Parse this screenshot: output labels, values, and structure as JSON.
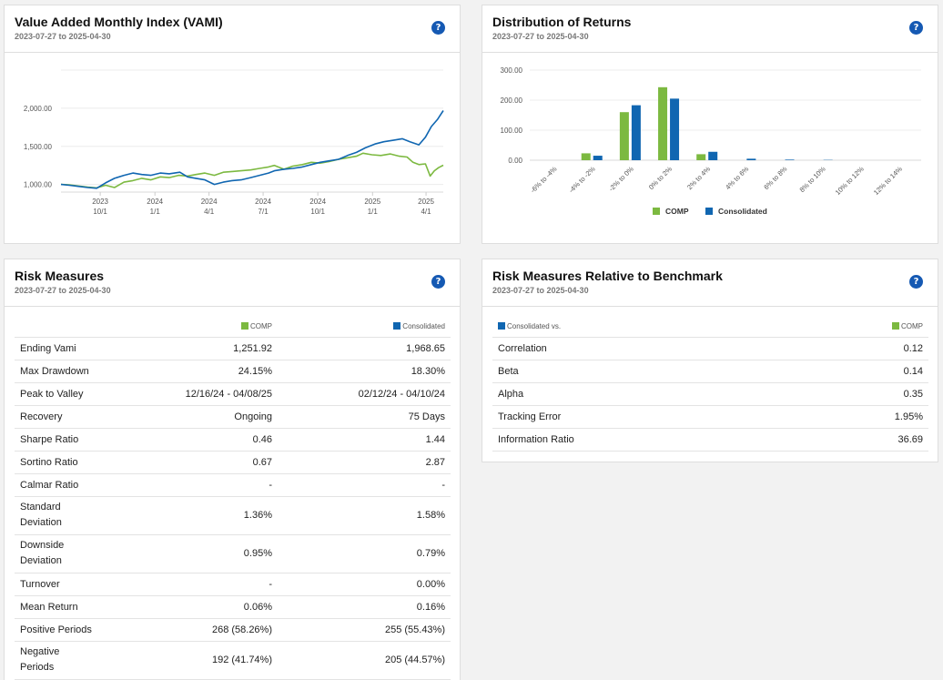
{
  "colors": {
    "comp": "#7cb940",
    "consolidated": "#1066b1",
    "help": "#1559b3"
  },
  "vami": {
    "title": "Value Added Monthly Index (VAMI)",
    "date_range": "2023-07-27 to 2025-04-30",
    "help_icon": "?",
    "chart_data": {
      "type": "line",
      "title": "",
      "y_ticks": [
        "2,000.00",
        "1,500.00",
        "1,000.00"
      ],
      "y_tick_values": [
        2000,
        1500,
        1000
      ],
      "ylim": [
        900,
        2500
      ],
      "x_ticks": [
        {
          "year": "2023",
          "month": "10/1",
          "date": "2023-10-01"
        },
        {
          "year": "2024",
          "month": "1/1",
          "date": "2024-01-01"
        },
        {
          "year": "2024",
          "month": "4/1",
          "date": "2024-04-01"
        },
        {
          "year": "2024",
          "month": "7/1",
          "date": "2024-07-01"
        },
        {
          "year": "2024",
          "month": "10/1",
          "date": "2024-10-01"
        },
        {
          "year": "2025",
          "month": "1/1",
          "date": "2025-01-01"
        },
        {
          "year": "2025",
          "month": "4/1",
          "date": "2025-04-01"
        }
      ],
      "xlim": [
        "2023-07-27",
        "2025-04-30"
      ],
      "series": [
        {
          "name": "COMP",
          "color": "#7cb940",
          "x": [
            "2023-07-27",
            "2023-08-10",
            "2023-08-25",
            "2023-09-10",
            "2023-09-25",
            "2023-10-10",
            "2023-10-25",
            "2023-11-10",
            "2023-11-25",
            "2023-12-10",
            "2023-12-25",
            "2024-01-10",
            "2024-01-25",
            "2024-02-10",
            "2024-02-25",
            "2024-03-10",
            "2024-03-25",
            "2024-04-10",
            "2024-04-25",
            "2024-05-10",
            "2024-05-25",
            "2024-06-10",
            "2024-06-25",
            "2024-07-10",
            "2024-07-20",
            "2024-08-05",
            "2024-08-20",
            "2024-09-05",
            "2024-09-20",
            "2024-10-05",
            "2024-10-20",
            "2024-11-05",
            "2024-11-20",
            "2024-12-05",
            "2024-12-16",
            "2024-12-31",
            "2025-01-15",
            "2025-01-31",
            "2025-02-15",
            "2025-02-28",
            "2025-03-10",
            "2025-03-20",
            "2025-03-31",
            "2025-04-08",
            "2025-04-15",
            "2025-04-22",
            "2025-04-30"
          ],
          "values": [
            1000,
            995,
            980,
            965,
            955,
            990,
            960,
            1030,
            1050,
            1080,
            1060,
            1100,
            1090,
            1120,
            1110,
            1130,
            1150,
            1120,
            1160,
            1170,
            1180,
            1190,
            1210,
            1230,
            1250,
            1200,
            1240,
            1260,
            1290,
            1280,
            1300,
            1330,
            1350,
            1370,
            1410,
            1390,
            1380,
            1400,
            1370,
            1360,
            1290,
            1260,
            1270,
            1110,
            1180,
            1220,
            1252
          ]
        },
        {
          "name": "Consolidated",
          "color": "#1066b1",
          "x": [
            "2023-07-27",
            "2023-08-10",
            "2023-08-25",
            "2023-09-10",
            "2023-09-25",
            "2023-10-10",
            "2023-10-25",
            "2023-11-10",
            "2023-11-25",
            "2023-12-10",
            "2023-12-25",
            "2024-01-10",
            "2024-01-25",
            "2024-02-12",
            "2024-02-25",
            "2024-03-10",
            "2024-03-25",
            "2024-04-10",
            "2024-04-25",
            "2024-05-10",
            "2024-05-25",
            "2024-06-10",
            "2024-06-25",
            "2024-07-10",
            "2024-07-20",
            "2024-08-05",
            "2024-08-20",
            "2024-09-05",
            "2024-09-20",
            "2024-10-05",
            "2024-10-20",
            "2024-11-05",
            "2024-11-20",
            "2024-12-05",
            "2024-12-20",
            "2025-01-05",
            "2025-01-20",
            "2025-02-05",
            "2025-02-20",
            "2025-03-05",
            "2025-03-20",
            "2025-03-31",
            "2025-04-10",
            "2025-04-20",
            "2025-04-30"
          ],
          "values": [
            1000,
            990,
            975,
            960,
            950,
            1020,
            1080,
            1120,
            1150,
            1130,
            1120,
            1150,
            1140,
            1160,
            1100,
            1080,
            1060,
            1000,
            1030,
            1050,
            1060,
            1090,
            1120,
            1150,
            1180,
            1200,
            1210,
            1230,
            1260,
            1290,
            1310,
            1330,
            1380,
            1420,
            1480,
            1530,
            1560,
            1580,
            1600,
            1560,
            1520,
            1620,
            1760,
            1850,
            1969
          ]
        }
      ]
    }
  },
  "distribution": {
    "title": "Distribution of Returns",
    "date_range": "2023-07-27 to 2025-04-30",
    "help_icon": "?",
    "chart_data": {
      "type": "bar",
      "title": "",
      "categories": [
        "-6% to -4%",
        "-4% to -2%",
        "-2% to 0%",
        "0% to 2%",
        "2% to 4%",
        "4% to 6%",
        "6% to 8%",
        "8% to 10%",
        "10% to 12%",
        "12% to 14%"
      ],
      "y_ticks": [
        "300.00",
        "200.00",
        "100.00",
        "0.00"
      ],
      "y_tick_values": [
        300,
        200,
        100,
        0
      ],
      "ylim": [
        0,
        300
      ],
      "legend_position": "bottom",
      "series": [
        {
          "name": "COMP",
          "color": "#7cb940",
          "values": [
            0,
            23,
            160,
            243,
            20,
            0,
            0,
            0,
            0,
            0
          ]
        },
        {
          "name": "Consolidated",
          "color": "#1066b1",
          "values": [
            0,
            15,
            183,
            205,
            28,
            5,
            2,
            1,
            0,
            0
          ]
        }
      ]
    }
  },
  "risk": {
    "title": "Risk Measures",
    "date_range": "2023-07-27 to 2025-04-30",
    "help_icon": "?",
    "col_comp": "COMP",
    "col_consolidated": "Consolidated",
    "rows": [
      {
        "label": "Ending Vami",
        "comp": "1,251.92",
        "consolidated": "1,968.65"
      },
      {
        "label": "Max Drawdown",
        "comp": "24.15%",
        "consolidated": "18.30%"
      },
      {
        "label": "Peak to Valley",
        "comp": "12/16/24 - 04/08/25",
        "consolidated": "02/12/24 - 04/10/24"
      },
      {
        "label": "Recovery",
        "comp": "Ongoing",
        "consolidated": "75 Days"
      },
      {
        "label": "Sharpe Ratio",
        "comp": "0.46",
        "consolidated": "1.44"
      },
      {
        "label": "Sortino Ratio",
        "comp": "0.67",
        "consolidated": "2.87"
      },
      {
        "label": "Calmar Ratio",
        "comp": "-",
        "consolidated": "-"
      },
      {
        "label": "Standard Deviation",
        "comp": "1.36%",
        "consolidated": "1.58%"
      },
      {
        "label": "Downside Deviation",
        "comp": "0.95%",
        "consolidated": "0.79%"
      },
      {
        "label": "Turnover",
        "comp": "-",
        "consolidated": "0.00%"
      },
      {
        "label": "Mean Return",
        "comp": "0.06%",
        "consolidated": "0.16%"
      },
      {
        "label": "Positive Periods",
        "comp": "268 (58.26%)",
        "consolidated": "255 (55.43%)"
      },
      {
        "label": "Negative Periods",
        "comp": "192 (41.74%)",
        "consolidated": "205 (44.57%)"
      }
    ]
  },
  "relative": {
    "title": "Risk Measures Relative to Benchmark",
    "date_range": "2023-07-27 to 2025-04-30",
    "help_icon": "?",
    "col_left": "Consolidated vs.",
    "col_right": "COMP",
    "rows": [
      {
        "label": "Correlation",
        "value": "0.12"
      },
      {
        "label": "Beta",
        "value": "0.14"
      },
      {
        "label": "Alpha",
        "value": "0.35"
      },
      {
        "label": "Tracking Error",
        "value": "1.95%"
      },
      {
        "label": "Information Ratio",
        "value": "36.69"
      }
    ]
  }
}
